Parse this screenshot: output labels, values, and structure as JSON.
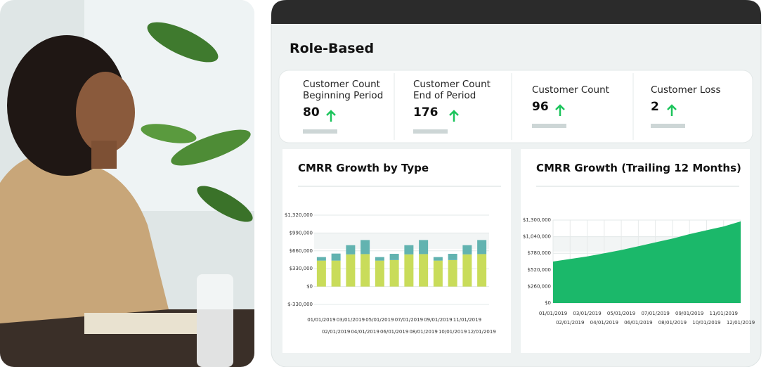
{
  "title": "Role-Based",
  "kpis": [
    {
      "label": "Customer Count Beginning Period",
      "value": 80
    },
    {
      "label": "Customer Count End of Period",
      "value": 176
    },
    {
      "label": "Customer Count",
      "value": 96
    },
    {
      "label": "Customer Loss",
      "value": 2
    }
  ],
  "chart_data": [
    {
      "type": "bar",
      "stacked": true,
      "title": "CMRR Growth by Type",
      "categories": [
        "01/01/2019",
        "02/01/2019",
        "03/01/2019",
        "04/01/2019",
        "05/01/2019",
        "06/01/2019",
        "07/01/2019",
        "08/01/2019",
        "09/01/2019",
        "10/01/2019",
        "11/01/2019",
        "12/01/2019"
      ],
      "series": [
        {
          "color": "#c9dc5a",
          "values": [
            480000,
            480000,
            595000,
            600000,
            480000,
            490000,
            595000,
            600000,
            480000,
            490000,
            595000,
            600000
          ]
        },
        {
          "color": "#62b3b0",
          "values": [
            65000,
            130000,
            170000,
            260000,
            65000,
            115000,
            170000,
            260000,
            65000,
            115000,
            170000,
            260000
          ]
        }
      ],
      "ylim": [
        -330000,
        1320000
      ],
      "yticks": [
        {
          "value": -330000,
          "label": "$-330,000"
        },
        {
          "value": 0,
          "label": "$0"
        },
        {
          "value": 330000,
          "label": "$330,000"
        },
        {
          "value": 660000,
          "label": "$660,000"
        },
        {
          "value": 990000,
          "label": "$990,000"
        },
        {
          "value": 1320000,
          "label": "$1,320,000"
        }
      ]
    },
    {
      "type": "area",
      "title": "CMRR Growth (Trailing 12 Months)",
      "grid": true,
      "categories": [
        "01/01/2019",
        "02/01/2019",
        "03/01/2019",
        "04/01/2019",
        "05/01/2019",
        "06/01/2019",
        "07/01/2019",
        "08/01/2019",
        "09/01/2019",
        "10/01/2019",
        "11/01/2019",
        "12/01/2019"
      ],
      "series": [
        {
          "color": "#1bb86a",
          "values": [
            650000,
            690000,
            730000,
            780000,
            830000,
            890000,
            950000,
            1010000,
            1080000,
            1140000,
            1200000,
            1280000
          ]
        }
      ],
      "ylim": [
        0,
        1300000
      ],
      "yticks": [
        {
          "value": 0,
          "label": "$0"
        },
        {
          "value": 260000,
          "label": "$260,000"
        },
        {
          "value": 520000,
          "label": "$520,000"
        },
        {
          "value": 780000,
          "label": "$780,000"
        },
        {
          "value": 1040000,
          "label": "$1,040,000"
        },
        {
          "value": 1300000,
          "label": "$1,300,000"
        }
      ]
    }
  ]
}
